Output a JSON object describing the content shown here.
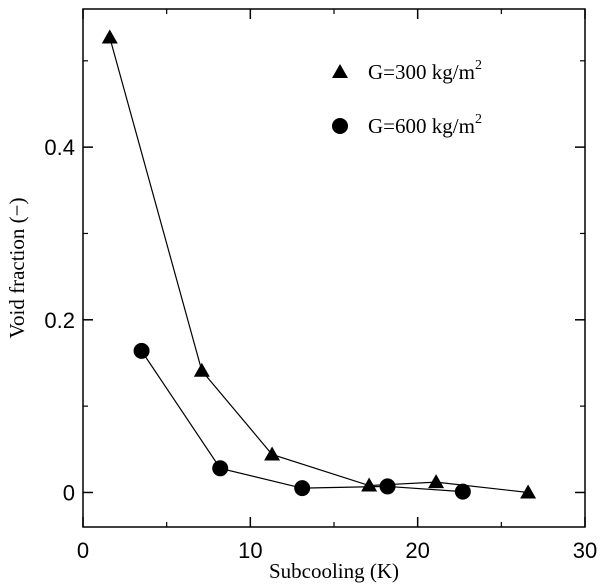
{
  "chart_data": {
    "type": "scatter",
    "xlabel": "Subcooling (K)",
    "ylabel": "Void fraction (−)",
    "xlim": [
      0,
      30
    ],
    "ylim": [
      -0.04,
      0.56
    ],
    "xticks": [
      0,
      10,
      20,
      30
    ],
    "xtick_labels": [
      "0",
      "10",
      "20",
      "30"
    ],
    "yticks": [
      0,
      0.2,
      0.4
    ],
    "ytick_labels": [
      "0",
      "0.2",
      "0.4"
    ],
    "grid": false,
    "legend_position": "top-right",
    "series": [
      {
        "name": "G=300 kg/m",
        "name_superscript": "2",
        "marker": "triangle",
        "color": "#000000",
        "x": [
          1.6,
          7.1,
          11.3,
          17.1,
          21.1,
          26.6
        ],
        "y": [
          0.527,
          0.141,
          0.044,
          0.008,
          0.012,
          0.0
        ]
      },
      {
        "name": "G=600 kg/m",
        "name_superscript": "2",
        "marker": "circle",
        "color": "#000000",
        "x": [
          3.5,
          8.2,
          13.1,
          18.2,
          22.7
        ],
        "y": [
          0.164,
          0.028,
          0.005,
          0.007,
          0.001
        ]
      }
    ]
  }
}
